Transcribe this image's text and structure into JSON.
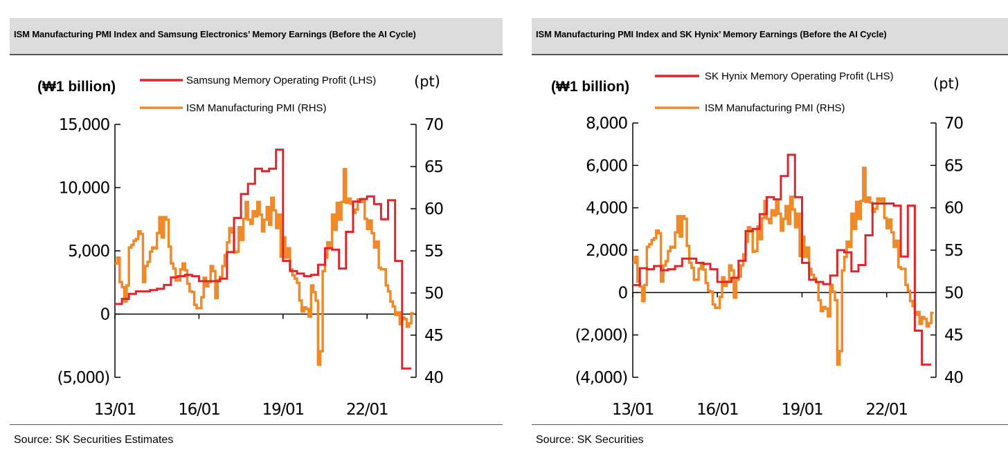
{
  "chart_data": [
    {
      "type": "line",
      "title": "ISM Manufacturing PMI Index and Samsung Electronics’ Memory Earnings (Before the AI Cycle)",
      "source": "Source: SK Securities Estimates",
      "left_axis_unit": "(₩1 billion)",
      "right_axis_unit": "(pt)",
      "left_ticks": [
        "15,000",
        "10,000",
        "5,000",
        "0",
        "(5,000)"
      ],
      "left_ylim": [
        -5000,
        15000
      ],
      "right_ticks": [
        "70",
        "65",
        "60",
        "55",
        "50",
        "45",
        "40"
      ],
      "right_ylim": [
        40,
        70
      ],
      "x_ticks": [
        "13/01",
        "16/01",
        "19/01",
        "22/01"
      ],
      "x_tick_positions": [
        2013.0,
        2016.0,
        2019.0,
        2022.0
      ],
      "xlim": [
        2013.0,
        2023.75
      ],
      "legend_position": "top-center",
      "series": [
        {
          "name": "Samsung Memory Operating Profit (LHS)",
          "axis": "left",
          "color": "#e0242b",
          "step": true,
          "x": [
            2013.0,
            2013.25,
            2013.5,
            2013.75,
            2014.0,
            2014.25,
            2014.5,
            2014.75,
            2015.0,
            2015.25,
            2015.5,
            2015.75,
            2016.0,
            2016.25,
            2016.5,
            2016.75,
            2017.0,
            2017.25,
            2017.5,
            2017.75,
            2018.0,
            2018.25,
            2018.5,
            2018.75,
            2019.0,
            2019.25,
            2019.5,
            2019.75,
            2020.0,
            2020.25,
            2020.5,
            2020.75,
            2021.0,
            2021.25,
            2021.5,
            2021.75,
            2022.0,
            2022.25,
            2022.5,
            2022.75,
            2023.0,
            2023.25,
            2023.5
          ],
          "values": [
            800,
            1200,
            1600,
            1800,
            1800,
            1900,
            2000,
            2300,
            2900,
            3000,
            3100,
            3000,
            2600,
            2600,
            2600,
            2800,
            4900,
            7600,
            9500,
            10300,
            11500,
            11300,
            11500,
            13000,
            4200,
            3400,
            3200,
            3000,
            3100,
            3900,
            5200,
            5100,
            3600,
            6500,
            8900,
            9100,
            9300,
            8700,
            7500,
            9000,
            4200,
            -4300,
            -4300
          ]
        },
        {
          "name": "ISM Manufacturing PMI (RHS)",
          "axis": "right",
          "color": "#f0892a",
          "step": true,
          "x": [
            2013.0,
            2013.083,
            2013.167,
            2013.25,
            2013.333,
            2013.417,
            2013.5,
            2013.583,
            2013.667,
            2013.75,
            2013.833,
            2013.917,
            2014.0,
            2014.083,
            2014.167,
            2014.25,
            2014.333,
            2014.417,
            2014.5,
            2014.583,
            2014.667,
            2014.75,
            2014.833,
            2014.917,
            2015.0,
            2015.083,
            2015.167,
            2015.25,
            2015.333,
            2015.417,
            2015.5,
            2015.583,
            2015.667,
            2015.75,
            2015.833,
            2015.917,
            2016.0,
            2016.083,
            2016.167,
            2016.25,
            2016.333,
            2016.417,
            2016.5,
            2016.583,
            2016.667,
            2016.75,
            2016.833,
            2016.917,
            2017.0,
            2017.083,
            2017.167,
            2017.25,
            2017.333,
            2017.417,
            2017.5,
            2017.583,
            2017.667,
            2017.75,
            2017.833,
            2017.917,
            2018.0,
            2018.083,
            2018.167,
            2018.25,
            2018.333,
            2018.417,
            2018.5,
            2018.583,
            2018.667,
            2018.75,
            2018.833,
            2018.917,
            2019.0,
            2019.083,
            2019.167,
            2019.25,
            2019.333,
            2019.417,
            2019.5,
            2019.583,
            2019.667,
            2019.75,
            2019.833,
            2019.917,
            2020.0,
            2020.083,
            2020.167,
            2020.25,
            2020.333,
            2020.417,
            2020.5,
            2020.583,
            2020.667,
            2020.75,
            2020.833,
            2020.917,
            2021.0,
            2021.083,
            2021.167,
            2021.25,
            2021.333,
            2021.417,
            2021.5,
            2021.583,
            2021.667,
            2021.75,
            2021.833,
            2021.917,
            2022.0,
            2022.083,
            2022.167,
            2022.25,
            2022.333,
            2022.417,
            2022.5,
            2022.583,
            2022.667,
            2022.75,
            2022.833,
            2022.917,
            2023.0,
            2023.083,
            2023.167,
            2023.25,
            2023.333,
            2023.417,
            2023.5,
            2023.583
          ],
          "values": [
            53.5,
            54.2,
            51.3,
            50.7,
            49.0,
            50.9,
            55.4,
            55.7,
            56.2,
            56.4,
            57.3,
            57.0,
            51.3,
            53.2,
            53.7,
            54.9,
            55.4,
            55.3,
            57.1,
            59.0,
            56.6,
            59.0,
            58.7,
            55.5,
            53.5,
            52.9,
            51.5,
            51.5,
            52.8,
            53.5,
            52.7,
            51.1,
            50.2,
            50.1,
            48.6,
            48.2,
            48.2,
            49.5,
            51.8,
            50.8,
            51.3,
            53.2,
            52.6,
            49.4,
            51.5,
            51.9,
            53.2,
            54.5,
            56.0,
            57.7,
            57.2,
            54.8,
            54.9,
            57.8,
            56.3,
            58.8,
            60.8,
            58.7,
            58.2,
            59.7,
            59.1,
            60.8,
            59.3,
            57.3,
            58.7,
            60.2,
            58.1,
            61.3,
            59.8,
            57.7,
            59.3,
            54.3,
            56.6,
            54.2,
            55.3,
            52.8,
            52.1,
            51.7,
            51.2,
            49.1,
            47.8,
            48.3,
            48.1,
            47.2,
            50.9,
            50.1,
            49.1,
            41.5,
            43.1,
            52.6,
            54.2,
            56.0,
            55.4,
            59.3,
            57.5,
            60.7,
            58.7,
            60.8,
            64.7,
            60.7,
            61.2,
            60.6,
            59.5,
            59.9,
            61.1,
            60.8,
            61.1,
            58.8,
            57.6,
            58.6,
            57.1,
            55.4,
            56.1,
            53.0,
            52.8,
            52.8,
            50.9,
            50.2,
            49.0,
            48.4,
            47.4,
            47.7,
            46.3,
            47.1,
            46.9,
            46.0,
            46.4,
            47.6
          ]
        }
      ]
    },
    {
      "type": "line",
      "title": "ISM Manufacturing PMI Index and SK Hynix’ Memory Earnings (Before the AI Cycle)",
      "source": "Source: SK Securities",
      "left_axis_unit": "(₩1 billion)",
      "right_axis_unit": "(pt)",
      "left_ticks": [
        "8,000",
        "6,000",
        "4,000",
        "2,000",
        "0",
        "(2,000)",
        "(4,000)"
      ],
      "left_ylim": [
        -4000,
        8000
      ],
      "right_ticks": [
        "70",
        "65",
        "60",
        "55",
        "50",
        "45",
        "40"
      ],
      "right_ylim": [
        40,
        70
      ],
      "x_ticks": [
        "13/01",
        "16/01",
        "19/01",
        "22/01"
      ],
      "x_tick_positions": [
        2013.0,
        2016.0,
        2019.0,
        2022.0
      ],
      "xlim": [
        2013.0,
        2023.75
      ],
      "legend_position": "top-center",
      "series": [
        {
          "name": "SK Hynix Memory Operating Profit (LHS)",
          "axis": "left",
          "color": "#e0242b",
          "step": true,
          "x": [
            2013.0,
            2013.25,
            2013.5,
            2013.75,
            2014.0,
            2014.25,
            2014.5,
            2014.75,
            2015.0,
            2015.25,
            2015.5,
            2015.75,
            2016.0,
            2016.25,
            2016.5,
            2016.75,
            2017.0,
            2017.25,
            2017.5,
            2017.75,
            2018.0,
            2018.25,
            2018.5,
            2018.75,
            2019.0,
            2019.25,
            2019.5,
            2019.75,
            2020.0,
            2020.25,
            2020.5,
            2020.75,
            2021.0,
            2021.25,
            2021.5,
            2021.75,
            2022.0,
            2022.25,
            2022.5,
            2022.75,
            2023.0,
            2023.25,
            2023.5
          ],
          "values": [
            350,
            1150,
            1100,
            1250,
            1050,
            1100,
            1250,
            1600,
            1600,
            1400,
            1350,
            1100,
            500,
            500,
            700,
            1500,
            2900,
            3000,
            3700,
            4500,
            4400,
            5500,
            6500,
            4500,
            1400,
            600,
            500,
            400,
            800,
            2000,
            1900,
            1000,
            1300,
            2700,
            4200,
            4200,
            4200,
            4100,
            1700,
            4100,
            -1800,
            -3400,
            -3400
          ]
        },
        {
          "name": "ISM Manufacturing PMI (RHS)",
          "axis": "right",
          "color": "#f0892a",
          "step": true,
          "x": [
            2013.0,
            2013.083,
            2013.167,
            2013.25,
            2013.333,
            2013.417,
            2013.5,
            2013.583,
            2013.667,
            2013.75,
            2013.833,
            2013.917,
            2014.0,
            2014.083,
            2014.167,
            2014.25,
            2014.333,
            2014.417,
            2014.5,
            2014.583,
            2014.667,
            2014.75,
            2014.833,
            2014.917,
            2015.0,
            2015.083,
            2015.167,
            2015.25,
            2015.333,
            2015.417,
            2015.5,
            2015.583,
            2015.667,
            2015.75,
            2015.833,
            2015.917,
            2016.0,
            2016.083,
            2016.167,
            2016.25,
            2016.333,
            2016.417,
            2016.5,
            2016.583,
            2016.667,
            2016.75,
            2016.833,
            2016.917,
            2017.0,
            2017.083,
            2017.167,
            2017.25,
            2017.333,
            2017.417,
            2017.5,
            2017.583,
            2017.667,
            2017.75,
            2017.833,
            2017.917,
            2018.0,
            2018.083,
            2018.167,
            2018.25,
            2018.333,
            2018.417,
            2018.5,
            2018.583,
            2018.667,
            2018.75,
            2018.833,
            2018.917,
            2019.0,
            2019.083,
            2019.167,
            2019.25,
            2019.333,
            2019.417,
            2019.5,
            2019.583,
            2019.667,
            2019.75,
            2019.833,
            2019.917,
            2020.0,
            2020.083,
            2020.167,
            2020.25,
            2020.333,
            2020.417,
            2020.5,
            2020.583,
            2020.667,
            2020.75,
            2020.833,
            2020.917,
            2021.0,
            2021.083,
            2021.167,
            2021.25,
            2021.333,
            2021.417,
            2021.5,
            2021.583,
            2021.667,
            2021.75,
            2021.833,
            2021.917,
            2022.0,
            2022.083,
            2022.167,
            2022.25,
            2022.333,
            2022.417,
            2022.5,
            2022.583,
            2022.667,
            2022.75,
            2022.833,
            2022.917,
            2023.0,
            2023.083,
            2023.167,
            2023.25,
            2023.333,
            2023.417,
            2023.5,
            2023.583
          ],
          "values": [
            53.5,
            54.2,
            51.3,
            50.7,
            49.0,
            50.9,
            55.4,
            55.7,
            56.2,
            56.4,
            57.3,
            57.0,
            51.3,
            53.2,
            53.7,
            54.9,
            55.4,
            55.3,
            57.1,
            59.0,
            56.6,
            59.0,
            58.7,
            55.5,
            53.5,
            52.9,
            51.5,
            51.5,
            52.8,
            53.5,
            52.7,
            51.1,
            50.2,
            50.1,
            48.6,
            48.2,
            48.2,
            49.5,
            51.8,
            50.8,
            51.3,
            53.2,
            52.6,
            49.4,
            51.5,
            51.9,
            53.2,
            54.5,
            56.0,
            57.7,
            57.2,
            54.8,
            54.9,
            57.8,
            56.3,
            58.8,
            60.8,
            58.7,
            58.2,
            59.7,
            59.1,
            60.8,
            59.3,
            57.3,
            58.7,
            60.2,
            58.1,
            61.3,
            59.8,
            57.7,
            59.3,
            54.3,
            56.6,
            54.2,
            55.3,
            52.8,
            52.1,
            51.7,
            51.2,
            49.1,
            47.8,
            48.3,
            48.1,
            47.2,
            50.9,
            50.1,
            49.1,
            41.5,
            43.1,
            52.6,
            54.2,
            56.0,
            55.4,
            59.3,
            57.5,
            60.7,
            58.7,
            60.8,
            64.7,
            60.7,
            61.2,
            60.6,
            59.5,
            59.9,
            61.1,
            60.8,
            61.1,
            58.8,
            57.6,
            58.6,
            57.1,
            55.4,
            56.1,
            53.0,
            52.8,
            52.8,
            50.9,
            50.2,
            49.0,
            48.4,
            47.4,
            47.7,
            46.3,
            47.1,
            46.9,
            46.0,
            46.4,
            47.6
          ]
        }
      ]
    }
  ]
}
